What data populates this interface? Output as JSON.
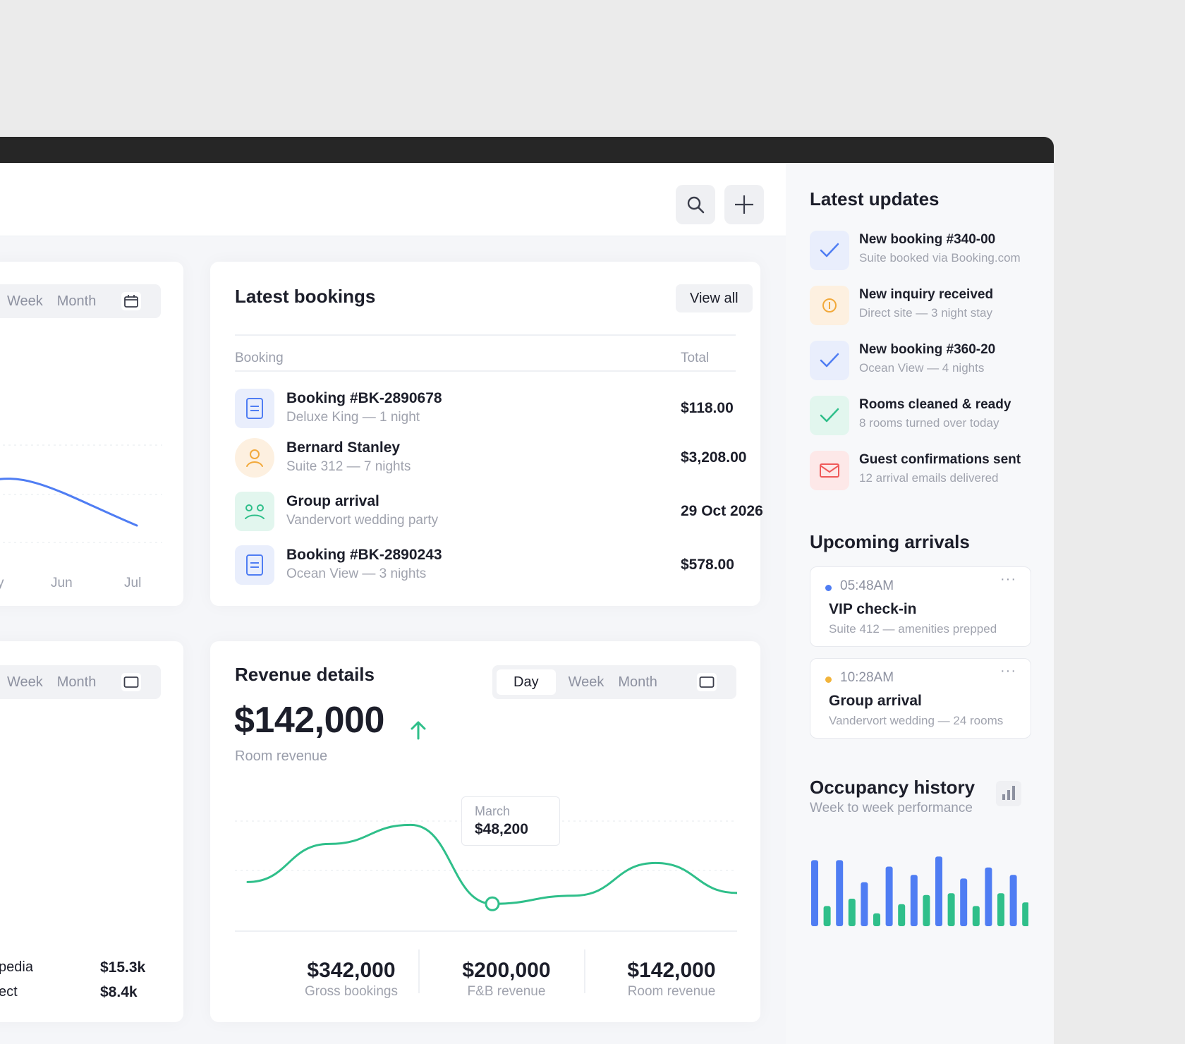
{
  "topbar": {
    "search_icon": "search-icon",
    "add_icon": "plus-icon"
  },
  "left_card_top": {
    "tabs": [
      "Week",
      "Month"
    ],
    "x_ticks": [
      "y",
      "Jun",
      "Jul"
    ],
    "line_color": "#4f7df3"
  },
  "left_card_bottom": {
    "tabs": [
      "Week",
      "Month"
    ],
    "rows": [
      {
        "label": "pedia",
        "value": "$15.3k"
      },
      {
        "label": "ect",
        "value": "$8.4k"
      }
    ]
  },
  "bookings": {
    "title": "Latest bookings",
    "view_all": "View all",
    "col_booking": "Booking",
    "col_total": "Total",
    "rows": [
      {
        "title": "Booking #BK-2890678",
        "sub": "Deluxe King — 1 night",
        "total": "$118.00",
        "icon": "document-icon"
      },
      {
        "title": "Bernard Stanley",
        "sub": "Suite 312 — 7 nights",
        "total": "$3,208.00",
        "icon": "user-icon"
      },
      {
        "title": "Group arrival",
        "sub": "Vandervort wedding party",
        "total": "29 Oct 2026",
        "icon": "group-icon"
      },
      {
        "title": "Booking #BK-2890243",
        "sub": "Ocean View — 3 nights",
        "total": "$578.00",
        "icon": "document-icon"
      }
    ]
  },
  "revenue": {
    "title": "Revenue details",
    "tabs": {
      "active": "Day",
      "others": [
        "Week",
        "Month"
      ]
    },
    "amount": "$142,000",
    "amount_label": "Room revenue",
    "tooltip": {
      "label": "March",
      "value": "$48,200"
    },
    "stats": [
      {
        "value": "$342,000",
        "label": "Gross bookings"
      },
      {
        "value": "$200,000",
        "label": "F&B revenue"
      },
      {
        "value": "$142,000",
        "label": "Room revenue"
      }
    ],
    "accent": "#2fbf8a"
  },
  "sidebar": {
    "updates_title": "Latest updates",
    "updates": [
      {
        "title": "New booking #340-00",
        "sub": "Suite booked via Booking.com",
        "icon": "check-icon",
        "color": "#4f7df3",
        "bg": "#e9eefc"
      },
      {
        "title": "New inquiry received",
        "sub": "Direct site — 3 night stay",
        "icon": "info-icon",
        "color": "#f2a93b",
        "bg": "#fdf0e0"
      },
      {
        "title": "New booking #360-20",
        "sub": "Ocean View — 4 nights",
        "icon": "check-icon",
        "color": "#4f7df3",
        "bg": "#e9eefc"
      },
      {
        "title": "Rooms cleaned & ready",
        "sub": "8 rooms turned over today",
        "icon": "check-icon",
        "color": "#2fbf8a",
        "bg": "#e2f6ee"
      },
      {
        "title": "Guest confirmations sent",
        "sub": "12 arrival emails delivered",
        "icon": "mail-icon",
        "color": "#ef5a5a",
        "bg": "#fde8e8"
      }
    ],
    "arrivals_title": "Upcoming arrivals",
    "arrivals": [
      {
        "time": "05:48AM",
        "title": "VIP check-in",
        "sub": "Suite 412 — amenities prepped",
        "dot": "#4f7df3",
        "more": "···"
      },
      {
        "time": "10:28AM",
        "title": "Group arrival",
        "sub": "Vandervort wedding — 24 rooms",
        "dot": "#f2b43b",
        "more": "···"
      }
    ],
    "occupancy_title": "Occupancy history",
    "occupancy_sub": "Week to week performance"
  },
  "chart_data": [
    {
      "type": "line",
      "title": "Revenue details",
      "x": [
        0,
        1,
        2,
        3,
        4,
        5,
        6
      ],
      "series": [
        {
          "values": [
            20,
            48,
            62,
            4,
            10,
            34,
            12
          ]
        }
      ]
    },
    {
      "type": "bar",
      "title": "Occupancy history",
      "categories": [
        "1",
        "2",
        "3",
        "4",
        "5",
        "6",
        "7",
        "8",
        "9",
        "10",
        "11",
        "12",
        "13",
        "14",
        "15",
        "16",
        "17",
        "18"
      ],
      "series": [
        {
          "values": [
            72,
            22,
            72,
            30,
            48,
            14,
            65,
            24,
            56,
            34,
            76,
            36,
            52,
            22,
            64,
            36,
            56,
            26
          ]
        }
      ],
      "colors": [
        "#4f7df3",
        "#2fbf8a"
      ],
      "ylim": [
        0,
        80
      ]
    }
  ]
}
